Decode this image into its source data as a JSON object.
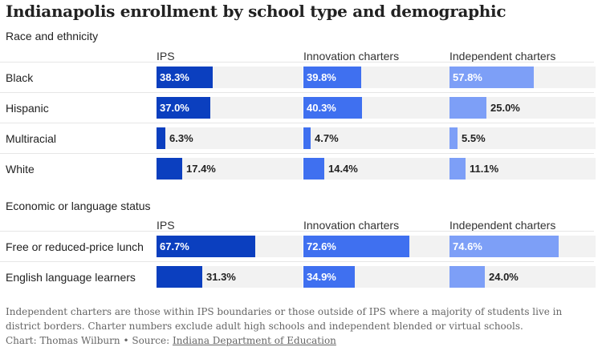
{
  "title": "Indianapolis enrollment by school type and demographic",
  "note": "Independent charters are those within IPS boundaries or those outside of IPS where a majority of students live in district borders. Charter numbers exclude adult high schools and independent blended or virtual schools.",
  "credit": {
    "chart_label": "Chart: Thomas Wilburn",
    "separator": "•",
    "source_label": "Source:",
    "source_link": "Indiana Department of Education"
  },
  "colors": {
    "IPS": "#0b3fbf",
    "Innovation charters": "#3f70f0",
    "Independent charters": "#7d9ff7",
    "track": "#f2f2f2"
  },
  "chart_data": [
    {
      "type": "bar",
      "title": "Race and ethnicity",
      "columns": [
        "IPS",
        "Innovation charters",
        "Independent charters"
      ],
      "categories": [
        "Black",
        "Hispanic",
        "Multiracial",
        "White"
      ],
      "value_format": "percent",
      "xlim": [
        0,
        100
      ],
      "series": [
        {
          "name": "IPS",
          "values": [
            38.3,
            37.0,
            6.3,
            17.4
          ]
        },
        {
          "name": "Innovation charters",
          "values": [
            39.8,
            40.3,
            4.7,
            14.4
          ]
        },
        {
          "name": "Independent charters",
          "values": [
            57.8,
            25.0,
            5.5,
            11.1
          ]
        }
      ]
    },
    {
      "type": "bar",
      "title": "Economic or language status",
      "columns": [
        "IPS",
        "Innovation charters",
        "Independent charters"
      ],
      "categories": [
        "Free or reduced-price lunch",
        "English language learners"
      ],
      "value_format": "percent",
      "xlim": [
        0,
        100
      ],
      "series": [
        {
          "name": "IPS",
          "values": [
            67.7,
            31.3
          ]
        },
        {
          "name": "Innovation charters",
          "values": [
            72.6,
            34.9
          ]
        },
        {
          "name": "Independent charters",
          "values": [
            74.6,
            24.0
          ]
        }
      ]
    }
  ]
}
